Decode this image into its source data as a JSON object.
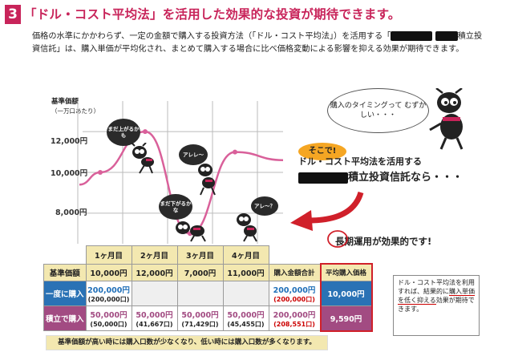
{
  "header": {
    "number": "3",
    "title": "「ドル・コスト平均法」を活用した効果的な投資が期待できます。"
  },
  "intro": {
    "part1": "価格の水準にかかわらず、一定の金額で購入する投資方法（「ドル・コスト平均法」）を活用する「",
    "part2": "積立投資信託」は、購入単価が平均化され、まとめて購入する場合に比べ価格変動による影響を抑える効果が期待できます。"
  },
  "chart": {
    "ylabel": "基準価額",
    "ylabel_unit": "（一万口あたり）",
    "yticks": [
      "12,000円",
      "10,000円",
      "8,000円"
    ],
    "bubbles": {
      "b1": "まだ上がるかも",
      "b2": "アレレ～",
      "b3": "まだ下がるかな",
      "b4": "アレ～？"
    }
  },
  "chart_data": {
    "type": "line",
    "x": [
      "1ヶ月目",
      "2ヶ月目",
      "3ヶ月目",
      "4ヶ月目"
    ],
    "series": [
      {
        "values": [
          10000,
          12000,
          7000,
          11000
        ]
      }
    ],
    "ylabel": "基準価額（一万口あたり）",
    "ylim": [
      6500,
      13500
    ],
    "yticks": [
      8000,
      10000,
      12000
    ],
    "grid": true
  },
  "callout": {
    "timing": "購入のタイミングって むずかしい・・・",
    "sokode": "そこで!",
    "promo1": "ドル・コスト平均法を活用する",
    "promo2": "積立投資信託なら・・・",
    "longterm": "長期運用が効果的です!"
  },
  "table": {
    "headers": [
      "基準価額",
      "10,000円",
      "12,000円",
      "7,000円",
      "11,000円",
      "購入金額合計",
      "平均購入価格"
    ],
    "months": [
      "1ヶ月目",
      "2ヶ月目",
      "3ヶ月目",
      "4ヶ月目"
    ],
    "rows": [
      {
        "label": "一度に購入",
        "amounts": [
          "200,000円",
          "",
          "",
          ""
        ],
        "units": [
          "(200,000口)",
          "",
          "",
          ""
        ],
        "total": "200,000円",
        "total_units": "(200,000口)",
        "avg": "10,000円"
      },
      {
        "label": "積立で購入",
        "amounts": [
          "50,000円",
          "50,000円",
          "50,000円",
          "50,000円"
        ],
        "units": [
          "(50,000口)",
          "(41,667口)",
          "(71,429口)",
          "(45,455口)"
        ],
        "total": "200,000円",
        "total_units": "(208,551口)",
        "avg": "9,590円"
      }
    ]
  },
  "side_note": {
    "text1": "ドル・コスト平均法を利用すれば、結果的に",
    "emph": "購入単価を低く抑える",
    "text2": "効果が期待できます。"
  },
  "footer": "基準価額が高い時には購入口数が少なくなり、低い時には購入口数が多くなります。",
  "colors": {
    "accent": "#c8245a",
    "line": "#d9609a",
    "row_blue": "#2a72b5",
    "row_pink": "#a24b82",
    "header_beige": "#f3e8b0",
    "highlight_border": "#d0202a"
  }
}
